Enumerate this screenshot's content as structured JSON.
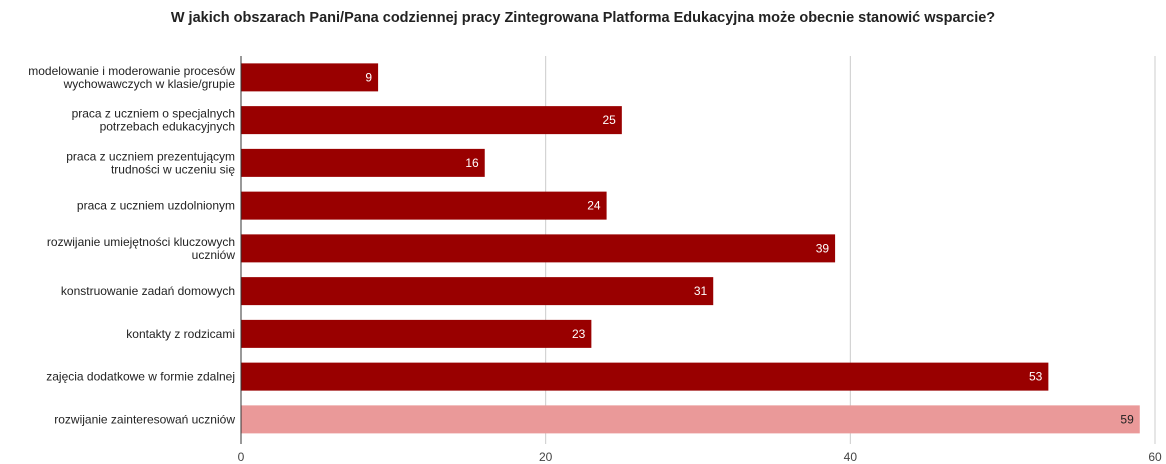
{
  "chart_data": {
    "type": "bar",
    "orientation": "horizontal",
    "title": "W jakich obszarach Pani/Pana codziennej pracy Zintegrowana Platforma Edukacyjna może obecnie stanowić wsparcie?",
    "categories": [
      [
        "modelowanie i moderowanie procesów",
        "wychowawczych w klasie/grupie"
      ],
      [
        "praca z uczniem o specjalnych",
        "potrzebach edukacyjnych"
      ],
      [
        "praca z uczniem prezentującym",
        "trudności w uczeniu się"
      ],
      [
        "praca z uczniem uzdolnionym"
      ],
      [
        "rozwijanie umiejętności kluczowych",
        "uczniów"
      ],
      [
        "konstruowanie zadań domowych"
      ],
      [
        "kontakty z rodzicami"
      ],
      [
        "zajęcia dodatkowe w formie zdalnej"
      ],
      [
        "rozwijanie zainteresowań uczniów"
      ]
    ],
    "values": [
      9,
      25,
      16,
      24,
      39,
      31,
      23,
      53,
      59
    ],
    "highlight_index": 8,
    "xlim": [
      0,
      60
    ],
    "xticks": [
      0,
      20,
      40,
      60
    ],
    "grid": true,
    "colors": {
      "bar": "#990000",
      "highlight": "#ea9999",
      "label_on_bar": "#ffffff",
      "label_on_highlight": "#222222",
      "grid": "#cccccc",
      "axis": "#333333"
    }
  }
}
